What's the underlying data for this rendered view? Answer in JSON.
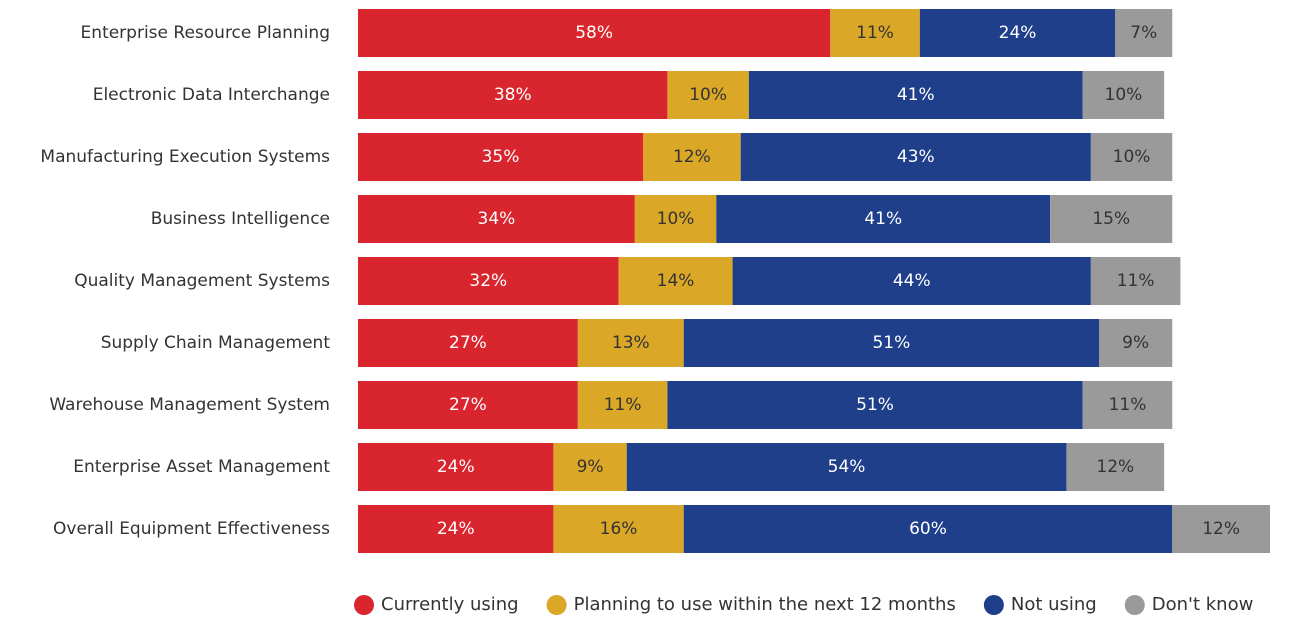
{
  "chart_data": {
    "type": "stacked_barh",
    "categories": [
      "Enterprise Resource Planning",
      "Electronic Data Interchange",
      "Manufacturing Execution Systems",
      "Business Intelligence",
      "Quality Management Systems",
      "Supply Chain Management",
      "Warehouse Management System",
      "Enterprise Asset Management",
      "Overall Equipment Effectiveness"
    ],
    "xlim": [
      0,
      112
    ],
    "legend": "bottom",
    "series": [
      {
        "name": "Currently using",
        "color": "#d9262e",
        "label_color": "#ffffff",
        "values": [
          58,
          38,
          35,
          34,
          32,
          27,
          27,
          24,
          24
        ],
        "value_labels": [
          "58%",
          "38%",
          "35%",
          "34%",
          "32%",
          "27%",
          "27%",
          "24%",
          "24%"
        ]
      },
      {
        "name": "Planning to use within the next 12 months",
        "color": "#dba727",
        "label_color": "#333333",
        "values": [
          11,
          10,
          12,
          10,
          14,
          13,
          11,
          9,
          16
        ],
        "value_labels": [
          "11%",
          "10%",
          "12%",
          "10%",
          "14%",
          "13%",
          "11%",
          "9%",
          "16%"
        ]
      },
      {
        "name": "Not using",
        "color": "#1f3f8a",
        "label_color": "#ffffff",
        "values": [
          24,
          41,
          43,
          41,
          44,
          51,
          51,
          54,
          60
        ],
        "value_labels": [
          "24%",
          "41%",
          "43%",
          "41%",
          "44%",
          "51%",
          "51%",
          "54%",
          "60%"
        ]
      },
      {
        "name": "Don't know",
        "color": "#9a9a9a",
        "label_color": "#333333",
        "values": [
          7,
          10,
          10,
          15,
          11,
          9,
          11,
          12,
          12
        ],
        "value_labels": [
          "7%",
          "10%",
          "10%",
          "15%",
          "11%",
          "9%",
          "11%",
          "12%",
          "12%"
        ]
      }
    ]
  }
}
